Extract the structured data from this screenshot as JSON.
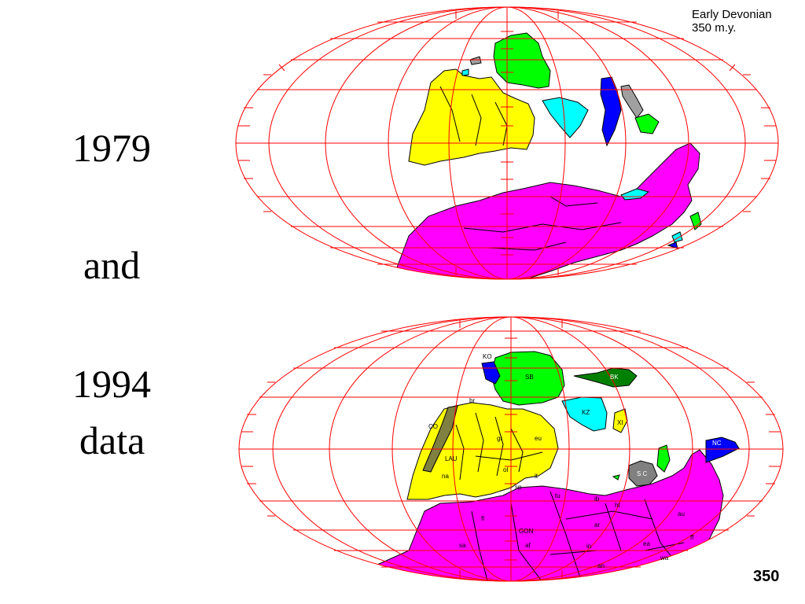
{
  "slide": {
    "label_year1": "1979",
    "label_and": "and",
    "label_year2": "1994",
    "label_data": "data",
    "page_number": "350"
  },
  "map_title": {
    "line1": "Early Devonian",
    "line2": "350 m.y."
  },
  "colors": {
    "grid": "#ff0000",
    "laurentia": "#ffff00",
    "gondwana": "#ff00ff",
    "siberia": "#00ff00",
    "kazakhstan": "#00ffff",
    "north_china": "#0000ff",
    "south_china": "#808080",
    "baltic_k": "#008000"
  },
  "bottom_map_labels": {
    "ko": "KO",
    "sb": "SB",
    "bk": "BK",
    "br": "br",
    "kz": "KZ",
    "xi": "XI",
    "co": "CO",
    "gr": "gr",
    "eu": "eu",
    "lau": "LAU",
    "ol": "ol",
    "na": "na",
    "nc": "NC",
    "sc": "S C",
    "it": "it",
    "tu": "tu",
    "ib": "ib",
    "ht": "ht",
    "gon": "GON",
    "ar": "ar",
    "au": "au",
    "ff": "ff",
    "sa": "sa",
    "af": "af",
    "in": "in",
    "ea": "ea",
    "wa": "wa",
    "ant": "an",
    "sp": "sp",
    "fl": "fl"
  }
}
